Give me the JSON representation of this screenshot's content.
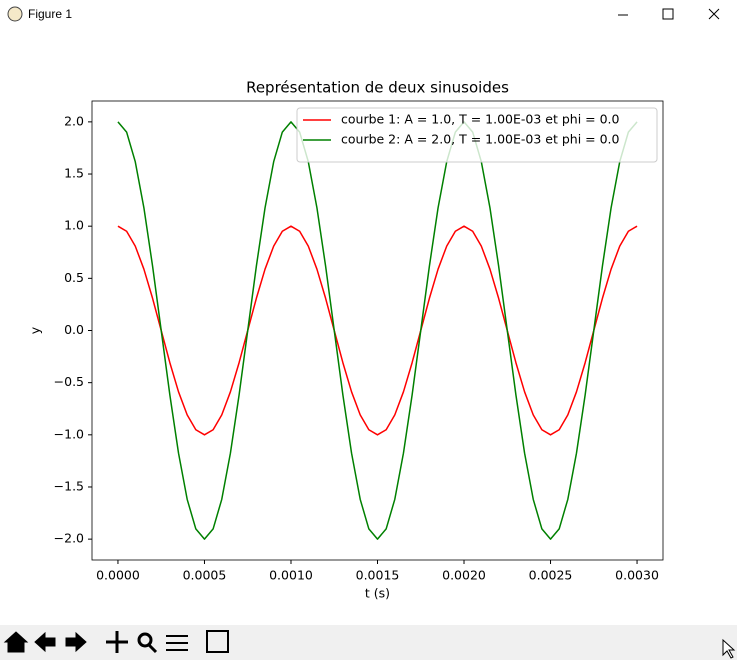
{
  "window": {
    "title": "Figure 1"
  },
  "chart_data": {
    "type": "line",
    "title": "Représentation de deux sinusoides",
    "xlabel": "t (s)",
    "ylabel": "y",
    "x": [
      0,
      5e-05,
      0.0001,
      0.00015,
      0.0002,
      0.00025,
      0.0003,
      0.00035,
      0.0004,
      0.00045,
      0.0005,
      0.00055,
      0.0006,
      0.00065,
      0.0007,
      0.00075,
      0.0008,
      0.00085,
      0.0009,
      0.00095,
      0.001,
      0.00105,
      0.0011,
      0.00115,
      0.0012,
      0.00125,
      0.0013,
      0.00135,
      0.0014,
      0.00145,
      0.0015,
      0.00155,
      0.0016,
      0.00165,
      0.0017,
      0.00175,
      0.0018,
      0.00185,
      0.0019,
      0.00195,
      0.002,
      0.00205,
      0.0021,
      0.00215,
      0.0022,
      0.00225,
      0.0023,
      0.00235,
      0.0024,
      0.00245,
      0.0025,
      0.00255,
      0.0026,
      0.00265,
      0.0027,
      0.00275,
      0.0028,
      0.00285,
      0.0029,
      0.00295,
      0.003
    ],
    "series": [
      {
        "name": "courbe 1: A = 1.0, T = 1.00E-03 et phi = 0.0",
        "color": "#ff0000",
        "values": [
          1,
          0.9511,
          0.809,
          0.5878,
          0.309,
          0,
          -0.309,
          -0.5878,
          -0.809,
          -0.9511,
          -1,
          -0.9511,
          -0.809,
          -0.5878,
          -0.309,
          0,
          0.309,
          0.5878,
          0.809,
          0.9511,
          1,
          0.9511,
          0.809,
          0.5878,
          0.309,
          0,
          -0.309,
          -0.5878,
          -0.809,
          -0.9511,
          -1,
          -0.9511,
          -0.809,
          -0.5878,
          -0.309,
          0,
          0.309,
          0.5878,
          0.809,
          0.9511,
          1,
          0.9511,
          0.809,
          0.5878,
          0.309,
          0,
          -0.309,
          -0.5878,
          -0.809,
          -0.9511,
          -1,
          -0.9511,
          -0.809,
          -0.5878,
          -0.309,
          0,
          0.309,
          0.5878,
          0.809,
          0.9511,
          1
        ]
      },
      {
        "name": "courbe 2: A = 2.0, T = 1.00E-03 et phi = 0.0",
        "color": "#008000",
        "values": [
          2,
          1.9021,
          1.618,
          1.1756,
          0.618,
          0,
          -0.618,
          -1.1756,
          -1.618,
          -1.9021,
          -2,
          -1.9021,
          -1.618,
          -1.1756,
          -0.618,
          0,
          0.618,
          1.1756,
          1.618,
          1.9021,
          2,
          1.9021,
          1.618,
          1.1756,
          0.618,
          0,
          -0.618,
          -1.1756,
          -1.618,
          -1.9021,
          -2,
          -1.9021,
          -1.618,
          -1.1756,
          -0.618,
          0,
          0.618,
          1.1756,
          1.618,
          1.9021,
          2,
          1.9021,
          1.618,
          1.1756,
          0.618,
          0,
          -0.618,
          -1.1756,
          -1.618,
          -1.9021,
          -2,
          -1.9021,
          -1.618,
          -1.1756,
          -0.618,
          0,
          0.618,
          1.1756,
          1.618,
          1.9021,
          2
        ]
      }
    ],
    "xlim": [
      -0.00015,
      0.00315
    ],
    "ylim": [
      -2.2,
      2.2
    ],
    "xticks": [
      {
        "value": 0,
        "label": "0.0000"
      },
      {
        "value": 0.0005,
        "label": "0.0005"
      },
      {
        "value": 0.001,
        "label": "0.0010"
      },
      {
        "value": 0.0015,
        "label": "0.0015"
      },
      {
        "value": 0.002,
        "label": "0.0020"
      },
      {
        "value": 0.0025,
        "label": "0.0025"
      },
      {
        "value": 0.003,
        "label": "0.0030"
      }
    ],
    "yticks": [
      {
        "value": -2,
        "label": "−2.0"
      },
      {
        "value": -1.5,
        "label": "−1.5"
      },
      {
        "value": -1,
        "label": "−1.0"
      },
      {
        "value": -0.5,
        "label": "−0.5"
      },
      {
        "value": 0,
        "label": "0.0"
      },
      {
        "value": 0.5,
        "label": "0.5"
      },
      {
        "value": 1,
        "label": "1.0"
      },
      {
        "value": 1.5,
        "label": "1.5"
      },
      {
        "value": 2,
        "label": "2.0"
      }
    ],
    "legend": "upper right"
  }
}
